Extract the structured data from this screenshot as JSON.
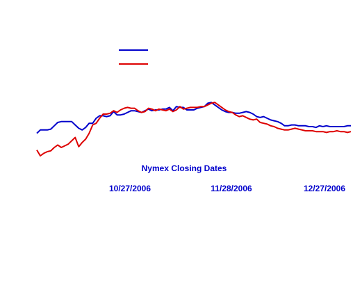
{
  "chart_data": {
    "type": "line",
    "title": "",
    "xlabel": "Nymex Closing Dates",
    "ylabel": "",
    "x_tick_labels": [
      "10/27/2006",
      "11/28/2006",
      "12/27/2006"
    ],
    "grid": false,
    "legend": {
      "placement": "top-center",
      "entries_text_visible": false
    },
    "colors": {
      "blue_series": "#0000cc",
      "red_series": "#dd0000",
      "label_text": "#0000cc"
    },
    "x_domain": [
      1,
      91
    ],
    "y_domain": [
      0,
      100
    ],
    "x": [
      1,
      2,
      3,
      4,
      5,
      6,
      7,
      8,
      9,
      10,
      11,
      12,
      13,
      14,
      15,
      16,
      17,
      18,
      19,
      20,
      21,
      22,
      23,
      24,
      25,
      26,
      27,
      28,
      29,
      30,
      31,
      32,
      33,
      34,
      35,
      36,
      37,
      38,
      39,
      40,
      41,
      42,
      43,
      44,
      45,
      46,
      47,
      48,
      49,
      50,
      51,
      52,
      53,
      54,
      55,
      56,
      57,
      58,
      59,
      60,
      61,
      62,
      63,
      64,
      65,
      66,
      67,
      68,
      69,
      70,
      71,
      72,
      73,
      74,
      75,
      76,
      77,
      78,
      79,
      80,
      81,
      82,
      83,
      84,
      85,
      86,
      87,
      88,
      89,
      90,
      91
    ],
    "series": [
      {
        "color": "#0000cc",
        "values": [
          32,
          36,
          36,
          36,
          37,
          41,
          45,
          46,
          46,
          46,
          46,
          42,
          38,
          36,
          39,
          44,
          44,
          50,
          53,
          53,
          52,
          53,
          58,
          54,
          54,
          55,
          57,
          59,
          59,
          58,
          57,
          59,
          61,
          59,
          60,
          60,
          61,
          61,
          63,
          59,
          64,
          63,
          63,
          60,
          60,
          60,
          62,
          63,
          64,
          68,
          69,
          66,
          63,
          60,
          58,
          57,
          57,
          56,
          56,
          57,
          58,
          57,
          55,
          52,
          51,
          52,
          50,
          48,
          47,
          46,
          44,
          41,
          41,
          42,
          42,
          41,
          41,
          41,
          40,
          40,
          39,
          41,
          40,
          41,
          40,
          40,
          40,
          40,
          40,
          41,
          41
        ]
      },
      {
        "color": "#dd0000",
        "values": [
          12,
          5,
          8,
          10,
          11,
          15,
          18,
          15,
          17,
          19,
          23,
          27,
          16,
          21,
          25,
          32,
          42,
          44,
          50,
          55,
          55,
          56,
          59,
          57,
          60,
          62,
          63,
          62,
          62,
          59,
          57,
          58,
          62,
          61,
          59,
          61,
          60,
          59,
          61,
          58,
          60,
          64,
          61,
          62,
          63,
          63,
          63,
          64,
          64,
          66,
          68,
          69,
          66,
          63,
          60,
          58,
          57,
          54,
          52,
          53,
          51,
          49,
          48,
          49,
          45,
          44,
          43,
          41,
          40,
          38,
          37,
          36,
          36,
          37,
          38,
          37,
          36,
          35,
          35,
          35,
          34,
          34,
          34,
          33,
          34,
          34,
          35,
          34,
          34,
          33,
          34
        ]
      }
    ]
  }
}
